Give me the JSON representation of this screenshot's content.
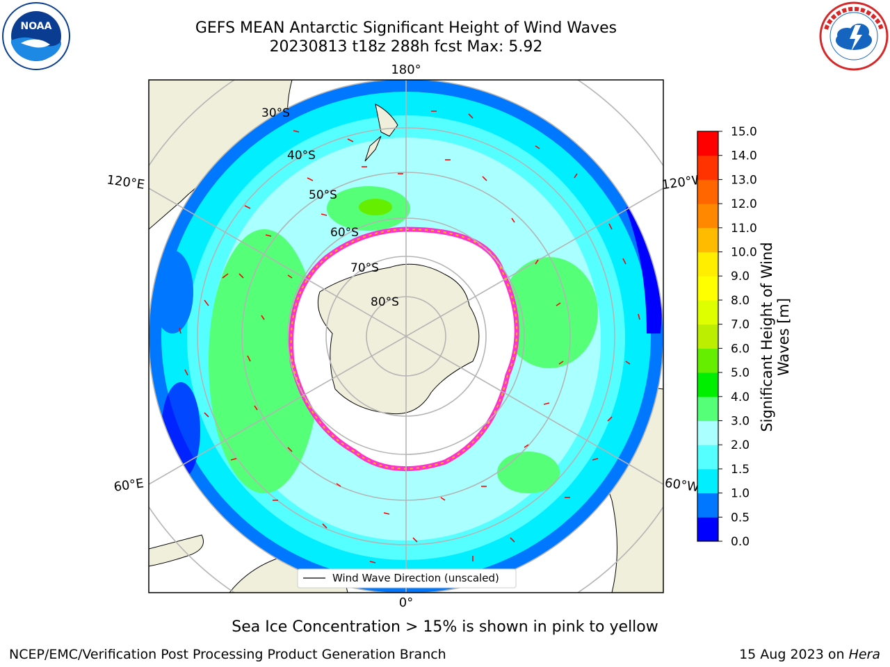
{
  "title": {
    "line1": "GEFS MEAN Antarctic Significant Height of Wind Waves",
    "line2": "20230813 t18z 288h fcst   Max: 5.92"
  },
  "logos": {
    "noaa": {
      "text": "NOAA",
      "colors": [
        "#0a3d91",
        "#1e88e5",
        "#ffffff"
      ]
    },
    "nws": {
      "colors": [
        "#d62828",
        "#1565c0",
        "#ffffff"
      ]
    }
  },
  "map": {
    "meridian_labels": [
      "180°",
      "120°E",
      "120°W",
      "60°E",
      "60°W",
      "0°"
    ],
    "parallel_labels": [
      "30°S",
      "40°S",
      "50°S",
      "60°S",
      "70°S",
      "80°S"
    ],
    "legend_label": "Wind Wave Direction (unscaled)",
    "land_color": "#efefdb",
    "ice_color": "#ff33cc",
    "arrow_color": "#ff0000"
  },
  "colorbar": {
    "ticks": [
      "15.0",
      "14.0",
      "13.0",
      "12.0",
      "11.0",
      "10.0",
      "9.0",
      "8.0",
      "7.0",
      "6.0",
      "5.0",
      "4.0",
      "3.0",
      "2.0",
      "1.5",
      "1.0",
      "0.5",
      "0.0"
    ],
    "colors": [
      "#0000ff",
      "#0077ff",
      "#00eeff",
      "#55ffff",
      "#aaffff",
      "#55ff77",
      "#00ee00",
      "#66ee00",
      "#bbee00",
      "#ddff00",
      "#ffff00",
      "#ffee00",
      "#ffbb00",
      "#ff8800",
      "#ff6600",
      "#ff3300",
      "#ff0000"
    ],
    "title_line1": "Significant Height of Wind",
    "title_line2": "Waves [m]"
  },
  "subcaption": "Sea Ice Concentration > 15% is shown in pink to yellow",
  "footer": {
    "left": "NCEP/EMC/Verification Post Processing Product Generation Branch",
    "right_date": "15 Aug 2023 on ",
    "right_machine": "Hera"
  }
}
